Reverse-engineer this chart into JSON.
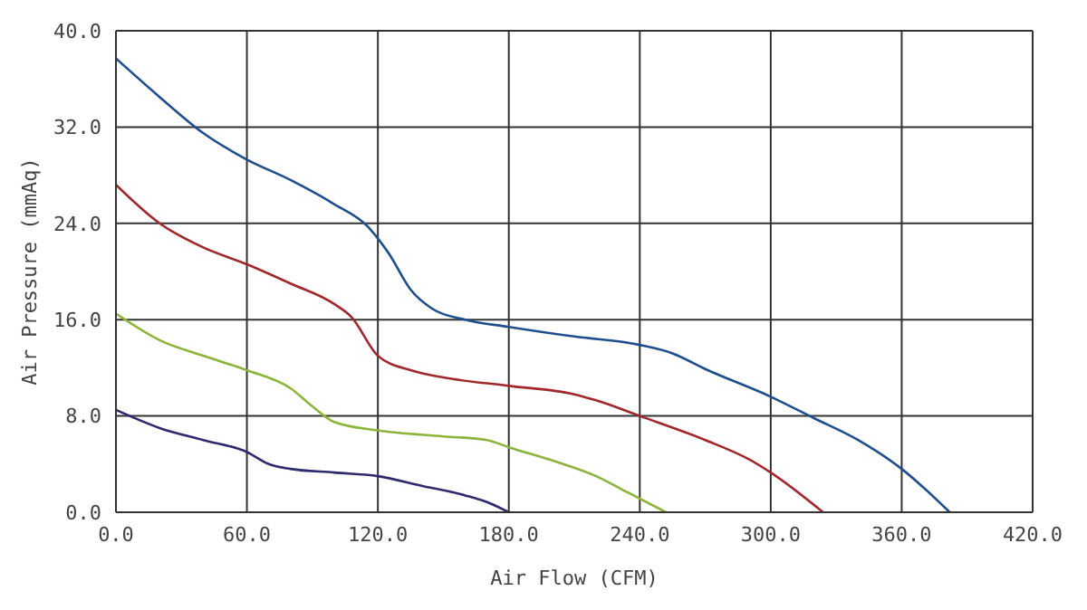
{
  "chart_data": {
    "type": "line",
    "xlabel": "Air Flow (CFM)",
    "ylabel": "Air Pressure (mmAq)",
    "xlim": [
      0,
      420
    ],
    "ylim": [
      0,
      40
    ],
    "xticks": [
      {
        "value": 0,
        "label": "0.0"
      },
      {
        "value": 60,
        "label": "60.0"
      },
      {
        "value": 120,
        "label": "120.0"
      },
      {
        "value": 180,
        "label": "180.0"
      },
      {
        "value": 240,
        "label": "240.0"
      },
      {
        "value": 300,
        "label": "300.0"
      },
      {
        "value": 360,
        "label": "360.0"
      },
      {
        "value": 420,
        "label": "420.0"
      }
    ],
    "yticks": [
      {
        "value": 0,
        "label": "0.0"
      },
      {
        "value": 8,
        "label": "8.0"
      },
      {
        "value": 16,
        "label": "16.0"
      },
      {
        "value": 24,
        "label": "24.0"
      },
      {
        "value": 32,
        "label": "32.0"
      },
      {
        "value": 40,
        "label": "40.0"
      }
    ],
    "grid": true,
    "marker": "none",
    "line_style": "solid",
    "series": [
      {
        "color": "#1f4e8c",
        "x": [
          0,
          20,
          40,
          60,
          80,
          100,
          115,
          125,
          135,
          145,
          160,
          180,
          210,
          240,
          255,
          270,
          300,
          320,
          340,
          360,
          382
        ],
        "values": [
          37.7,
          34.5,
          31.5,
          29.3,
          27.6,
          25.6,
          23.8,
          21.5,
          18.5,
          16.9,
          16.0,
          15.4,
          14.6,
          13.9,
          13.2,
          11.9,
          9.6,
          7.8,
          6.0,
          3.6,
          0
        ]
      },
      {
        "color": "#a0282c",
        "x": [
          0,
          20,
          40,
          60,
          80,
          100,
          108,
          120,
          135,
          150,
          180,
          210,
          220,
          240,
          270,
          290,
          300,
          324
        ],
        "values": [
          27.2,
          24.0,
          22.0,
          20.6,
          19.0,
          17.3,
          16.2,
          13.0,
          11.8,
          11.2,
          10.5,
          9.8,
          9.3,
          8.0,
          6.0,
          4.4,
          3.3,
          0
        ]
      },
      {
        "color": "#8db43a",
        "x": [
          0,
          20,
          40,
          60,
          80,
          90,
          100,
          120,
          150,
          170,
          180,
          200,
          220,
          235,
          252
        ],
        "values": [
          16.5,
          14.3,
          13.0,
          11.8,
          10.3,
          8.8,
          7.5,
          6.8,
          6.3,
          6.0,
          5.4,
          4.3,
          3.0,
          1.6,
          0
        ]
      },
      {
        "color": "#2e2a6e",
        "x": [
          0,
          20,
          40,
          60,
          70,
          80,
          100,
          120,
          140,
          160,
          172,
          180
        ],
        "values": [
          8.5,
          7.0,
          6.0,
          5.0,
          4.0,
          3.6,
          3.3,
          3.0,
          2.2,
          1.4,
          0.7,
          0
        ]
      }
    ]
  }
}
